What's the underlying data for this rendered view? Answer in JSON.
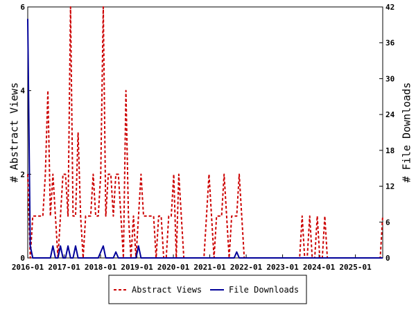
{
  "chart_data": {
    "type": "line",
    "title": "",
    "x_start": "2016-01",
    "x_end": "2025-10",
    "x_tick_labels": [
      "2016-01",
      "2017-01",
      "2018-01",
      "2019-01",
      "2020-01",
      "2021-01",
      "2022-01",
      "2023-01",
      "2024-01",
      "2025-01"
    ],
    "y_left": {
      "label": "# Abstract Views",
      "range": [
        0,
        6
      ],
      "ticks": [
        "0",
        "2",
        "4",
        "6"
      ]
    },
    "y_right": {
      "label": "# File Downloads",
      "range": [
        0,
        42
      ],
      "ticks": [
        "0",
        "6",
        "12",
        "18",
        "24",
        "30",
        "36",
        "42"
      ]
    },
    "grid": false,
    "legend_position": "bottom-center",
    "series": [
      {
        "name": "Abstract Views",
        "axis": "left",
        "color": "#cc0000",
        "style": "dashed",
        "values": [
          2,
          0,
          1,
          1,
          1,
          1,
          1,
          2,
          4,
          1,
          2,
          1,
          0,
          1,
          2,
          2,
          1,
          6,
          1,
          1,
          3,
          1,
          0,
          1,
          1,
          1,
          2,
          1,
          1,
          2,
          6,
          1,
          2,
          2,
          1,
          2,
          2,
          1,
          0,
          4,
          1,
          0,
          1,
          0,
          1,
          2,
          1,
          1,
          1,
          1,
          1,
          0,
          1,
          1,
          0,
          0,
          1,
          1,
          2,
          0,
          2,
          1,
          0,
          0,
          0,
          0,
          0,
          0,
          0,
          0,
          0,
          1,
          2,
          1,
          0,
          1,
          1,
          1,
          2,
          1,
          0,
          1,
          1,
          1,
          2,
          1,
          0,
          0,
          0,
          0,
          0,
          0,
          0,
          0,
          0,
          0,
          0,
          0,
          0,
          0,
          0,
          0,
          0,
          0,
          0,
          0,
          0,
          0,
          0,
          1,
          0,
          0,
          1,
          0,
          0,
          1,
          0,
          0,
          1,
          0,
          0,
          0,
          0,
          0,
          0,
          0,
          0,
          0,
          0,
          0,
          0,
          0,
          0,
          0,
          0,
          0,
          0,
          0,
          0,
          0,
          0,
          1
        ]
      },
      {
        "name": "File Downloads",
        "axis": "right",
        "color": "#000099",
        "style": "solid",
        "values": [
          40,
          2,
          0,
          0,
          0,
          0,
          0,
          0,
          0,
          0,
          2,
          0,
          0,
          2,
          0,
          0,
          2,
          0,
          0,
          2,
          0,
          0,
          0,
          0,
          0,
          0,
          0,
          0,
          0,
          1,
          2,
          0,
          0,
          0,
          0,
          1,
          0,
          0,
          0,
          0,
          0,
          0,
          0,
          0,
          2,
          0,
          0,
          0,
          0,
          0,
          0,
          0,
          0,
          0,
          0,
          0,
          0,
          0,
          0,
          0,
          0,
          0,
          0,
          0,
          0,
          0,
          0,
          0,
          0,
          0,
          0,
          0,
          0,
          0,
          0,
          0,
          0,
          0,
          0,
          0,
          0,
          0,
          0,
          1,
          0,
          0,
          0,
          0,
          0,
          0,
          0,
          0,
          0,
          0,
          0,
          0,
          0,
          0,
          0,
          0,
          0,
          0,
          0,
          0,
          0,
          0,
          0,
          0,
          0,
          0,
          0,
          0,
          0,
          0,
          0,
          0,
          0,
          0,
          0,
          0,
          0,
          0,
          0,
          0,
          0,
          0,
          0,
          0,
          0,
          0,
          0,
          0,
          0,
          0,
          0,
          0,
          0,
          0,
          0,
          0,
          0,
          0
        ]
      }
    ]
  }
}
